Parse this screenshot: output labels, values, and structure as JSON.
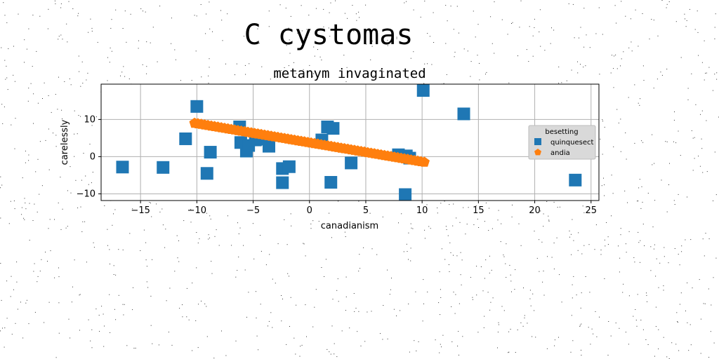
{
  "suptitle": "C cystomas",
  "chart_data": {
    "type": "scatter",
    "title": "metanym invaginated",
    "xlabel": "canadianism",
    "ylabel": "carelessly",
    "xlim": [
      -18.5,
      25.7
    ],
    "ylim": [
      -11.8,
      19.5
    ],
    "xticks": [
      -15,
      -10,
      -5,
      0,
      5,
      10,
      15,
      20,
      25
    ],
    "yticks": [
      -10,
      0,
      10
    ],
    "xtick_labels": [
      "−15",
      "−10",
      "−5",
      "0",
      "5",
      "10",
      "15",
      "20",
      "25"
    ],
    "ytick_labels": [
      "−10",
      "0",
      "10"
    ],
    "grid": true,
    "legend": {
      "title": "besetting",
      "placement": "center-right",
      "entries": [
        "quinquesect",
        "andia"
      ]
    },
    "series": [
      {
        "name": "quinquesect",
        "marker": "square",
        "color": "#1f77b4",
        "points": [
          [
            -16.6,
            -2.8
          ],
          [
            -13.0,
            -2.9
          ],
          [
            -11.0,
            4.8
          ],
          [
            -10.0,
            13.5
          ],
          [
            -9.1,
            -4.5
          ],
          [
            -8.8,
            1.2
          ],
          [
            -6.2,
            8.0
          ],
          [
            -6.1,
            3.8
          ],
          [
            -5.6,
            1.5
          ],
          [
            -5.4,
            3.0
          ],
          [
            -4.8,
            4.5
          ],
          [
            -3.7,
            4.7
          ],
          [
            -3.6,
            2.8
          ],
          [
            -2.4,
            -3.2
          ],
          [
            -2.4,
            -7.0
          ],
          [
            -1.8,
            -2.7
          ],
          [
            1.1,
            4.5
          ],
          [
            1.6,
            8.0
          ],
          [
            1.9,
            -6.9
          ],
          [
            2.1,
            7.6
          ],
          [
            3.7,
            -1.7
          ],
          [
            7.9,
            0.5
          ],
          [
            8.5,
            -10.2
          ],
          [
            8.6,
            0.2
          ],
          [
            8.9,
            -0.4
          ],
          [
            10.1,
            17.8
          ],
          [
            13.7,
            11.5
          ],
          [
            23.6,
            -6.3
          ]
        ]
      },
      {
        "name": "andia",
        "marker": "pentagon",
        "color": "#ff7f0e",
        "line": {
          "x_start": -10.2,
          "x_end": 10.2,
          "y_start": 9.0,
          "y_end": -1.5,
          "count": 70
        }
      }
    ]
  }
}
